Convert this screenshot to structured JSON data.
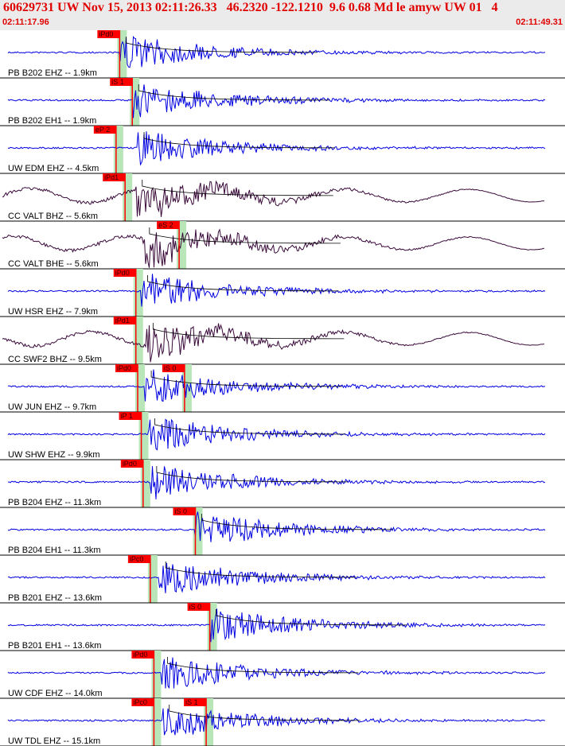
{
  "header": {
    "title": "60629731 UW Nov 15, 2013 02:11:26.33   46.2320 -122.1210  9.6 0.68 Md le amyw UW 01   4",
    "time_start": "02:11:17.96",
    "time_end": "02:11:49.31"
  },
  "colors": {
    "title": "#e00000",
    "trace_blue": "#0000e0",
    "trace_dark": "#3a0a3a",
    "pick_box": "#ff0000",
    "pick_shade": "#b8e6b8",
    "coda": "#000000",
    "separator": "#000000"
  },
  "chart_data": {
    "type": "line",
    "title": "60629731 UW Nov 15, 2013 02:11:26.33   46.2320 -122.1210  9.6 0.68 Md le amyw UW 01   4",
    "x_range_seconds": [
      17.96,
      49.31
    ],
    "traces": [
      {
        "label": "PB B202 EHZ -- 1.9km",
        "color": "blue",
        "p_pick": {
          "text": "iPd0",
          "t": 24.6
        },
        "s_pick": null,
        "onset_t": 24.6
      },
      {
        "label": "PB B202 EH1 -- 1.9km",
        "color": "blue",
        "p_pick": null,
        "s_pick": {
          "text": "iS 1",
          "t": 25.3
        },
        "onset_t": 25.3
      },
      {
        "label": "UW EDM EHZ -- 4.5km",
        "color": "blue",
        "p_pick": {
          "text": "eP 2",
          "t": 24.4
        },
        "s_pick": null,
        "onset_t": 25.6
      },
      {
        "label": "CC VALT BHZ -- 5.6km",
        "color": "dark",
        "p_pick": {
          "text": "iPd1",
          "t": 24.9
        },
        "s_pick": null,
        "onset_t": 25.5
      },
      {
        "label": "CC VALT BHE -- 5.6km",
        "color": "dark",
        "p_pick": null,
        "s_pick": {
          "text": "eS 2",
          "t": 27.9
        },
        "onset_t": 25.9
      },
      {
        "label": "UW HSR EHZ -- 7.9km",
        "color": "blue",
        "p_pick": {
          "text": "iPd0",
          "t": 25.5
        },
        "s_pick": null,
        "onset_t": 25.8
      },
      {
        "label": "CC SWF2 BHZ -- 9.5km",
        "color": "dark",
        "p_pick": {
          "text": "iPd1",
          "t": 25.5
        },
        "s_pick": null,
        "onset_t": 26.1
      },
      {
        "label": "UW JUN EHZ -- 9.7km",
        "color": "blue",
        "p_pick": {
          "text": "iPd0",
          "t": 25.6
        },
        "s_pick": {
          "text": "iS 0",
          "t": 28.2
        },
        "onset_t": 26.0
      },
      {
        "label": "UW SHW EHZ -- 9.9km",
        "color": "blue",
        "p_pick": {
          "text": "iP 1",
          "t": 25.8
        },
        "s_pick": null,
        "onset_t": 26.2
      },
      {
        "label": "PB B204 EHZ -- 11.3km",
        "color": "blue",
        "p_pick": {
          "text": "iPd0",
          "t": 25.9
        },
        "s_pick": null,
        "onset_t": 26.3
      },
      {
        "label": "PB B204 EH1 -- 11.3km",
        "color": "blue",
        "p_pick": null,
        "s_pick": {
          "text": "iS 0",
          "t": 28.8
        },
        "onset_t": 28.8
      },
      {
        "label": "PB B201 EHZ -- 13.6km",
        "color": "blue",
        "p_pick": {
          "text": "iPc0",
          "t": 26.3
        },
        "s_pick": null,
        "onset_t": 26.8
      },
      {
        "label": "PB B201 EH1 -- 13.6km",
        "color": "blue",
        "p_pick": null,
        "s_pick": {
          "text": "iS 0",
          "t": 29.6
        },
        "onset_t": 29.6
      },
      {
        "label": "UW CDF EHZ -- 14.0km",
        "color": "blue",
        "p_pick": {
          "text": "iPd0",
          "t": 26.5
        },
        "s_pick": null,
        "onset_t": 26.9
      },
      {
        "label": "UW TDL EHZ -- 15.1km",
        "color": "blue",
        "p_pick": {
          "text": "iPc0",
          "t": 26.5
        },
        "s_pick": {
          "text": "iS 1",
          "t": 29.4
        },
        "onset_t": 27.0
      }
    ]
  }
}
